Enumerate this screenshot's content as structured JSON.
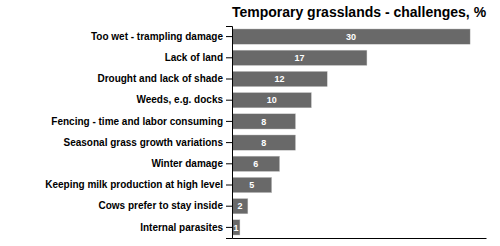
{
  "chart_data": {
    "type": "bar",
    "orientation": "horizontal",
    "title": "Temporary grasslands - challenges, %",
    "categories": [
      "Internal parasites",
      "Cows prefer to stay inside",
      "Keeping milk production at high level",
      "Winter damage",
      "Seasonal grass growth variations",
      "Fencing - time and labor consuming",
      "Weeds, e.g. docks",
      "Drought and lack of shade",
      "Lack of land",
      "Too wet - trampling damage"
    ],
    "values": [
      1,
      2,
      5,
      6,
      8,
      8,
      10,
      12,
      17,
      30
    ],
    "color": "#696969",
    "xlim": [
      0,
      32
    ],
    "data_labels": true,
    "tick_labels": "y"
  }
}
